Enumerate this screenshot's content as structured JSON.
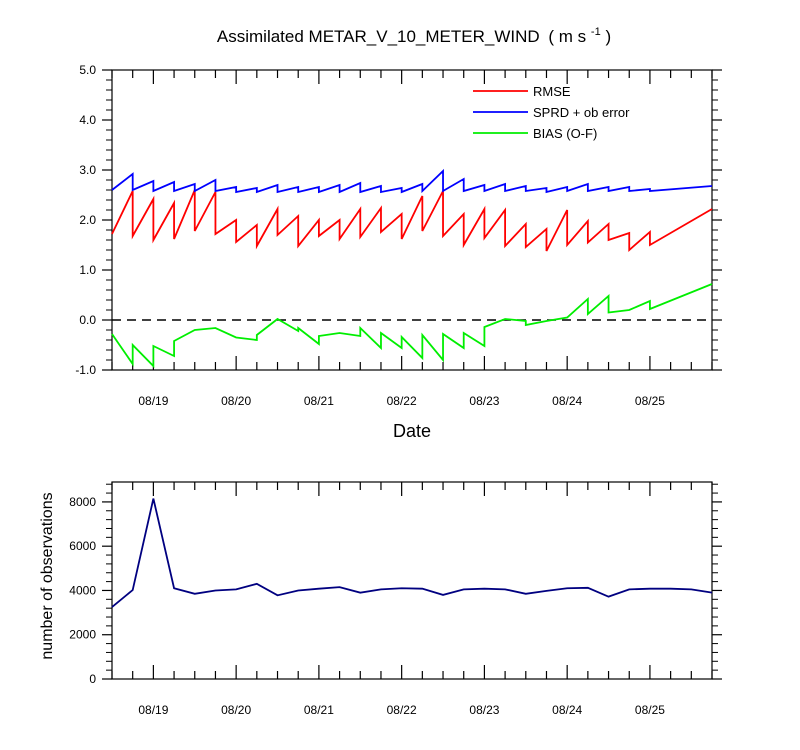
{
  "chart_data": [
    {
      "type": "line",
      "title": "Assimilated METAR_V_10_METER_WIND",
      "title_units": "( m s",
      "title_units_sup": "-1",
      "title_units_end": " )",
      "xlabel": "Date",
      "ylabel": "",
      "x_tick_labels": [
        "08/19",
        "08/20",
        "08/21",
        "08/22",
        "08/23",
        "08/24",
        "08/25"
      ],
      "x_tick_positions_days": [
        0.5,
        1.5,
        2.5,
        3.5,
        4.5,
        5.5,
        6.5
      ],
      "xlim_days": [
        0.0,
        7.25
      ],
      "ylim": [
        -1.0,
        5.0
      ],
      "y_ticks": [
        "-1.0",
        "0.0",
        "1.0",
        "2.0",
        "3.0",
        "4.0",
        "5.0"
      ],
      "zero_line": "dashed",
      "legend_position": "top-right",
      "series": [
        {
          "name": "RMSE",
          "color": "#ff0000",
          "points": [
            [
              0.0,
              1.72
            ],
            [
              0.25,
              2.58
            ],
            [
              0.25,
              1.68
            ],
            [
              0.5,
              2.42
            ],
            [
              0.5,
              1.6
            ],
            [
              0.75,
              2.34
            ],
            [
              0.75,
              1.62
            ],
            [
              1.0,
              2.6
            ],
            [
              1.0,
              1.78
            ],
            [
              1.25,
              2.56
            ],
            [
              1.25,
              1.72
            ],
            [
              1.5,
              2.0
            ],
            [
              1.5,
              1.56
            ],
            [
              1.75,
              1.9
            ],
            [
              1.75,
              1.48
            ],
            [
              2.0,
              2.22
            ],
            [
              2.0,
              1.7
            ],
            [
              2.25,
              2.08
            ],
            [
              2.25,
              1.48
            ],
            [
              2.5,
              2.0
            ],
            [
              2.5,
              1.68
            ],
            [
              2.75,
              2.0
            ],
            [
              2.75,
              1.62
            ],
            [
              3.0,
              2.22
            ],
            [
              3.0,
              1.66
            ],
            [
              3.25,
              2.24
            ],
            [
              3.25,
              1.76
            ],
            [
              3.5,
              2.12
            ],
            [
              3.5,
              1.62
            ],
            [
              3.75,
              2.48
            ],
            [
              3.75,
              1.78
            ],
            [
              4.0,
              2.58
            ],
            [
              4.0,
              1.68
            ],
            [
              4.25,
              2.12
            ],
            [
              4.25,
              1.5
            ],
            [
              4.5,
              2.22
            ],
            [
              4.5,
              1.64
            ],
            [
              4.75,
              2.2
            ],
            [
              4.75,
              1.48
            ],
            [
              5.0,
              1.92
            ],
            [
              5.0,
              1.46
            ],
            [
              5.25,
              1.82
            ],
            [
              5.25,
              1.38
            ],
            [
              5.5,
              2.2
            ],
            [
              5.5,
              1.5
            ],
            [
              5.75,
              1.98
            ],
            [
              5.75,
              1.55
            ],
            [
              6.0,
              1.92
            ],
            [
              6.0,
              1.6
            ],
            [
              6.25,
              1.74
            ],
            [
              6.25,
              1.4
            ],
            [
              6.5,
              1.76
            ],
            [
              6.5,
              1.5
            ],
            [
              7.25,
              2.22
            ]
          ]
        },
        {
          "name": "SPRD + ob error",
          "color": "#0000ff",
          "points": [
            [
              0.0,
              2.6
            ],
            [
              0.25,
              2.92
            ],
            [
              0.25,
              2.6
            ],
            [
              0.5,
              2.78
            ],
            [
              0.5,
              2.58
            ],
            [
              0.75,
              2.76
            ],
            [
              0.75,
              2.58
            ],
            [
              1.0,
              2.72
            ],
            [
              1.0,
              2.58
            ],
            [
              1.25,
              2.8
            ],
            [
              1.25,
              2.58
            ],
            [
              1.5,
              2.66
            ],
            [
              1.5,
              2.56
            ],
            [
              1.75,
              2.64
            ],
            [
              1.75,
              2.56
            ],
            [
              2.0,
              2.7
            ],
            [
              2.0,
              2.56
            ],
            [
              2.25,
              2.66
            ],
            [
              2.25,
              2.56
            ],
            [
              2.5,
              2.66
            ],
            [
              2.5,
              2.56
            ],
            [
              2.75,
              2.7
            ],
            [
              2.75,
              2.56
            ],
            [
              3.0,
              2.74
            ],
            [
              3.0,
              2.56
            ],
            [
              3.25,
              2.68
            ],
            [
              3.25,
              2.56
            ],
            [
              3.5,
              2.64
            ],
            [
              3.5,
              2.56
            ],
            [
              3.75,
              2.72
            ],
            [
              3.75,
              2.58
            ],
            [
              4.0,
              2.98
            ],
            [
              4.0,
              2.58
            ],
            [
              4.25,
              2.82
            ],
            [
              4.25,
              2.58
            ],
            [
              4.5,
              2.7
            ],
            [
              4.5,
              2.58
            ],
            [
              4.75,
              2.72
            ],
            [
              4.75,
              2.58
            ],
            [
              5.0,
              2.68
            ],
            [
              5.0,
              2.58
            ],
            [
              5.25,
              2.64
            ],
            [
              5.25,
              2.56
            ],
            [
              5.5,
              2.66
            ],
            [
              5.5,
              2.58
            ],
            [
              5.75,
              2.72
            ],
            [
              5.75,
              2.58
            ],
            [
              6.0,
              2.66
            ],
            [
              6.0,
              2.58
            ],
            [
              6.25,
              2.66
            ],
            [
              6.25,
              2.58
            ],
            [
              6.5,
              2.62
            ],
            [
              6.5,
              2.58
            ],
            [
              7.25,
              2.68
            ]
          ]
        },
        {
          "name": "BIAS (O-F)",
          "color": "#00ee00",
          "points": [
            [
              0.0,
              -0.28
            ],
            [
              0.25,
              -0.88
            ],
            [
              0.25,
              -0.5
            ],
            [
              0.5,
              -0.92
            ],
            [
              0.5,
              -0.52
            ],
            [
              0.75,
              -0.72
            ],
            [
              0.75,
              -0.42
            ],
            [
              1.0,
              -0.2
            ],
            [
              1.25,
              -0.16
            ],
            [
              1.5,
              -0.35
            ],
            [
              1.75,
              -0.4
            ],
            [
              1.75,
              -0.3
            ],
            [
              2.0,
              0.02
            ],
            [
              2.25,
              -0.22
            ],
            [
              2.25,
              -0.16
            ],
            [
              2.5,
              -0.48
            ],
            [
              2.5,
              -0.32
            ],
            [
              2.75,
              -0.26
            ],
            [
              3.0,
              -0.32
            ],
            [
              3.0,
              -0.16
            ],
            [
              3.25,
              -0.56
            ],
            [
              3.25,
              -0.26
            ],
            [
              3.5,
              -0.56
            ],
            [
              3.5,
              -0.34
            ],
            [
              3.75,
              -0.76
            ],
            [
              3.75,
              -0.3
            ],
            [
              4.0,
              -0.8
            ],
            [
              4.0,
              -0.28
            ],
            [
              4.25,
              -0.56
            ],
            [
              4.25,
              -0.26
            ],
            [
              4.5,
              -0.52
            ],
            [
              4.5,
              -0.14
            ],
            [
              4.75,
              0.02
            ],
            [
              5.0,
              -0.02
            ],
            [
              5.0,
              -0.1
            ],
            [
              5.25,
              -0.02
            ],
            [
              5.5,
              0.05
            ],
            [
              5.75,
              0.42
            ],
            [
              5.75,
              0.12
            ],
            [
              6.0,
              0.48
            ],
            [
              6.0,
              0.15
            ],
            [
              6.25,
              0.2
            ],
            [
              6.5,
              0.38
            ],
            [
              6.5,
              0.22
            ],
            [
              7.25,
              0.72
            ]
          ]
        }
      ]
    },
    {
      "type": "line",
      "title": "",
      "xlabel": "",
      "ylabel": "number of observations",
      "x_tick_labels": [
        "08/19",
        "08/20",
        "08/21",
        "08/22",
        "08/23",
        "08/24",
        "08/25"
      ],
      "x_tick_positions_days": [
        0.5,
        1.5,
        2.5,
        3.5,
        4.5,
        5.5,
        6.5
      ],
      "xlim_days": [
        0.0,
        7.25
      ],
      "ylim": [
        0,
        8900
      ],
      "y_ticks": [
        "0",
        "2000",
        "4000",
        "6000",
        "8000"
      ],
      "series": [
        {
          "name": "observations",
          "color": "#000080",
          "points": [
            [
              0.0,
              3250
            ],
            [
              0.25,
              4020
            ],
            [
              0.5,
              8150
            ],
            [
              0.75,
              4100
            ],
            [
              1.0,
              3850
            ],
            [
              1.25,
              4000
            ],
            [
              1.5,
              4050
            ],
            [
              1.75,
              4300
            ],
            [
              2.0,
              3780
            ],
            [
              2.25,
              4000
            ],
            [
              2.5,
              4080
            ],
            [
              2.75,
              4150
            ],
            [
              3.0,
              3900
            ],
            [
              3.25,
              4050
            ],
            [
              3.5,
              4100
            ],
            [
              3.75,
              4080
            ],
            [
              4.0,
              3800
            ],
            [
              4.25,
              4050
            ],
            [
              4.5,
              4080
            ],
            [
              4.75,
              4050
            ],
            [
              5.0,
              3850
            ],
            [
              5.25,
              3980
            ],
            [
              5.5,
              4100
            ],
            [
              5.75,
              4120
            ],
            [
              6.0,
              3720
            ],
            [
              6.25,
              4050
            ],
            [
              6.5,
              4080
            ],
            [
              6.75,
              4080
            ],
            [
              7.0,
              4050
            ],
            [
              7.25,
              3900
            ]
          ]
        }
      ]
    }
  ]
}
